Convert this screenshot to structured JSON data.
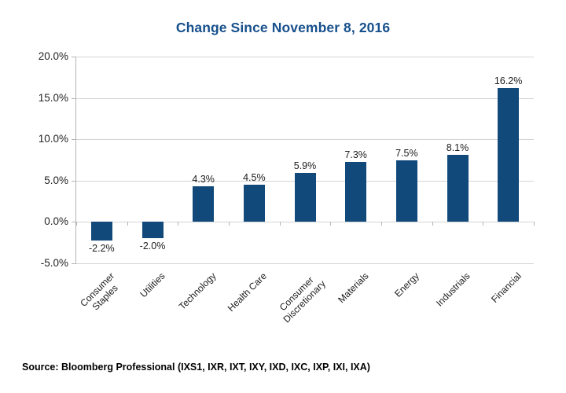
{
  "title": "Change Since November 8, 2016",
  "source": "Source: Bloomberg Professional (IXS1, IXR, IXT, IXY, IXD, IXC, IXP, IXI, IXA)",
  "colors": {
    "bar": "#11497b",
    "title": "#17508c",
    "gridline": "#d4d4d4",
    "axis": "#b5b5b5",
    "label": "#1c1c1c"
  },
  "chart_data": {
    "type": "bar",
    "title": "Change Since November 8, 2016",
    "categories": [
      "Consumer\nStaples",
      "Utilities",
      "Technology",
      "Health Care",
      "Consumer\nDiscretionary",
      "Materials",
      "Energy",
      "Industrials",
      "Financial"
    ],
    "values": [
      -2.2,
      -2.0,
      4.3,
      4.5,
      5.9,
      7.3,
      7.5,
      8.1,
      16.2
    ],
    "value_labels": [
      "-2.2%",
      "-2.0%",
      "4.3%",
      "4.5%",
      "5.9%",
      "7.3%",
      "7.5%",
      "8.1%",
      "16.2%"
    ],
    "xlabel": "",
    "ylabel": "",
    "ylim": [
      -5,
      20
    ],
    "ytick_step": 5,
    "ytick_labels": [
      "20.0%",
      "15.0%",
      "10.0%",
      "5.0%",
      "0.0%",
      "-5.0%"
    ],
    "grid": true,
    "legend": false
  }
}
